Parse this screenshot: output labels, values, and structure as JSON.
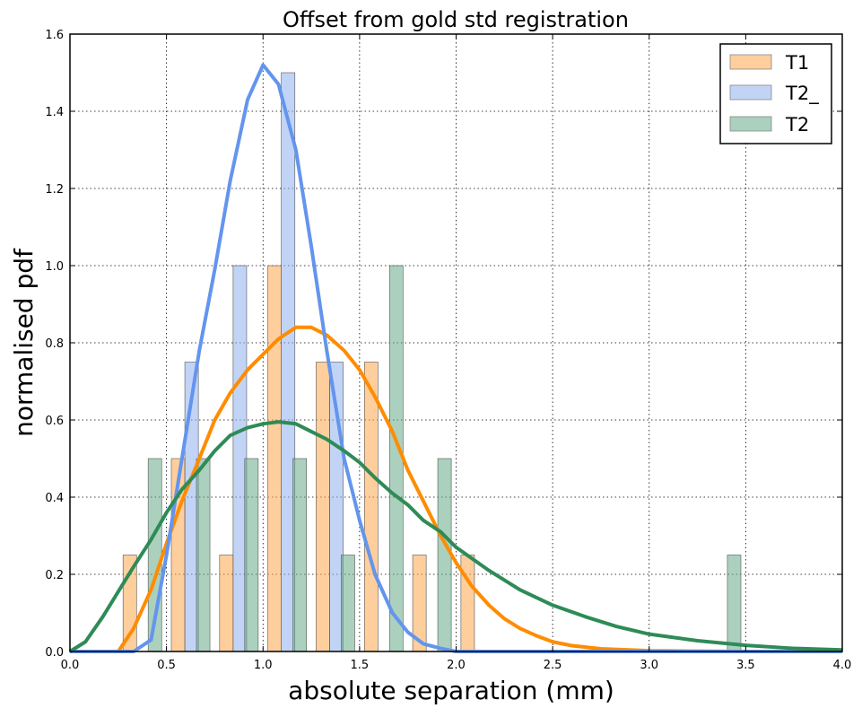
{
  "chart_data": {
    "type": "bar",
    "title": "Offset from gold std registration",
    "xlabel": "absolute separation (mm)",
    "ylabel": "normalised pdf",
    "xlim": [
      0.0,
      4.0
    ],
    "ylim": [
      0.0,
      1.6
    ],
    "xticks": [
      "0.0",
      "0.5",
      "1.0",
      "1.5",
      "2.0",
      "2.5",
      "3.0",
      "3.5",
      "4.0"
    ],
    "yticks": [
      "0.0",
      "0.2",
      "0.4",
      "0.6",
      "0.8",
      "1.0",
      "1.2",
      "1.4",
      "1.6"
    ],
    "grid": true,
    "legend_position": "top-right",
    "series": [
      {
        "name": "T1",
        "kind": "histogram",
        "color": "#ffa64d",
        "bars": [
          {
            "x": 0.31,
            "value": 0.25
          },
          {
            "x": 0.56,
            "value": 0.5
          },
          {
            "x": 0.81,
            "value": 0.25
          },
          {
            "x": 1.06,
            "value": 1.0
          },
          {
            "x": 1.31,
            "value": 0.75
          },
          {
            "x": 1.56,
            "value": 0.75
          },
          {
            "x": 1.81,
            "value": 0.25
          },
          {
            "x": 2.06,
            "value": 0.25
          }
        ]
      },
      {
        "name": "T2_",
        "kind": "histogram",
        "color": "#8fb0ee",
        "bars": [
          {
            "x": 0.63,
            "value": 0.75
          },
          {
            "x": 0.88,
            "value": 1.0
          },
          {
            "x": 1.13,
            "value": 1.5
          },
          {
            "x": 1.38,
            "value": 0.75
          }
        ]
      },
      {
        "name": "T2",
        "kind": "histogram",
        "color": "#66aa88",
        "bars": [
          {
            "x": 0.44,
            "value": 0.5
          },
          {
            "x": 0.69,
            "value": 0.5
          },
          {
            "x": 0.94,
            "value": 0.5
          },
          {
            "x": 1.19,
            "value": 0.5
          },
          {
            "x": 1.44,
            "value": 0.25
          },
          {
            "x": 1.69,
            "value": 1.0
          },
          {
            "x": 1.94,
            "value": 0.5
          },
          {
            "x": 3.44,
            "value": 0.25
          }
        ]
      }
    ],
    "curves": [
      {
        "series": "T1",
        "color": "#ff8c00",
        "points": [
          [
            0.25,
            0.0
          ],
          [
            0.33,
            0.06
          ],
          [
            0.42,
            0.16
          ],
          [
            0.5,
            0.28
          ],
          [
            0.58,
            0.39
          ],
          [
            0.67,
            0.5
          ],
          [
            0.75,
            0.6
          ],
          [
            0.83,
            0.67
          ],
          [
            0.92,
            0.73
          ],
          [
            1.0,
            0.77
          ],
          [
            1.08,
            0.81
          ],
          [
            1.17,
            0.84
          ],
          [
            1.25,
            0.84
          ],
          [
            1.33,
            0.82
          ],
          [
            1.42,
            0.78
          ],
          [
            1.5,
            0.73
          ],
          [
            1.58,
            0.66
          ],
          [
            1.67,
            0.57
          ],
          [
            1.75,
            0.47
          ],
          [
            1.83,
            0.39
          ],
          [
            1.92,
            0.3
          ],
          [
            2.0,
            0.23
          ],
          [
            2.08,
            0.17
          ],
          [
            2.17,
            0.12
          ],
          [
            2.25,
            0.085
          ],
          [
            2.33,
            0.06
          ],
          [
            2.42,
            0.04
          ],
          [
            2.5,
            0.025
          ],
          [
            2.6,
            0.015
          ],
          [
            2.75,
            0.007
          ],
          [
            3.0,
            0.002
          ],
          [
            3.5,
            0.0
          ],
          [
            4.0,
            0.0
          ]
        ]
      },
      {
        "series": "T2_",
        "color": "#6495ed",
        "points": [
          [
            0.0,
            0.0
          ],
          [
            0.33,
            0.0
          ],
          [
            0.42,
            0.03
          ],
          [
            0.5,
            0.25
          ],
          [
            0.58,
            0.5
          ],
          [
            0.67,
            0.78
          ],
          [
            0.75,
            0.99
          ],
          [
            0.83,
            1.22
          ],
          [
            0.92,
            1.43
          ],
          [
            1.0,
            1.52
          ],
          [
            1.08,
            1.47
          ],
          [
            1.17,
            1.3
          ],
          [
            1.25,
            1.05
          ],
          [
            1.33,
            0.78
          ],
          [
            1.42,
            0.5
          ],
          [
            1.5,
            0.34
          ],
          [
            1.58,
            0.2
          ],
          [
            1.67,
            0.1
          ],
          [
            1.75,
            0.05
          ],
          [
            1.83,
            0.02
          ],
          [
            1.92,
            0.008
          ],
          [
            2.0,
            0.0
          ],
          [
            4.0,
            0.0
          ]
        ]
      },
      {
        "series": "T2",
        "color": "#2e8b57",
        "points": [
          [
            0.0,
            0.0
          ],
          [
            0.08,
            0.025
          ],
          [
            0.17,
            0.09
          ],
          [
            0.25,
            0.155
          ],
          [
            0.33,
            0.22
          ],
          [
            0.42,
            0.29
          ],
          [
            0.5,
            0.36
          ],
          [
            0.58,
            0.42
          ],
          [
            0.67,
            0.47
          ],
          [
            0.75,
            0.52
          ],
          [
            0.83,
            0.56
          ],
          [
            0.92,
            0.58
          ],
          [
            1.0,
            0.59
          ],
          [
            1.08,
            0.595
          ],
          [
            1.17,
            0.59
          ],
          [
            1.25,
            0.57
          ],
          [
            1.33,
            0.55
          ],
          [
            1.42,
            0.52
          ],
          [
            1.5,
            0.49
          ],
          [
            1.58,
            0.45
          ],
          [
            1.67,
            0.41
          ],
          [
            1.75,
            0.38
          ],
          [
            1.83,
            0.34
          ],
          [
            1.92,
            0.31
          ],
          [
            2.0,
            0.27
          ],
          [
            2.17,
            0.21
          ],
          [
            2.33,
            0.16
          ],
          [
            2.5,
            0.12
          ],
          [
            2.67,
            0.09
          ],
          [
            2.83,
            0.065
          ],
          [
            3.0,
            0.045
          ],
          [
            3.25,
            0.028
          ],
          [
            3.5,
            0.016
          ],
          [
            3.75,
            0.008
          ],
          [
            4.0,
            0.004
          ]
        ]
      }
    ]
  }
}
